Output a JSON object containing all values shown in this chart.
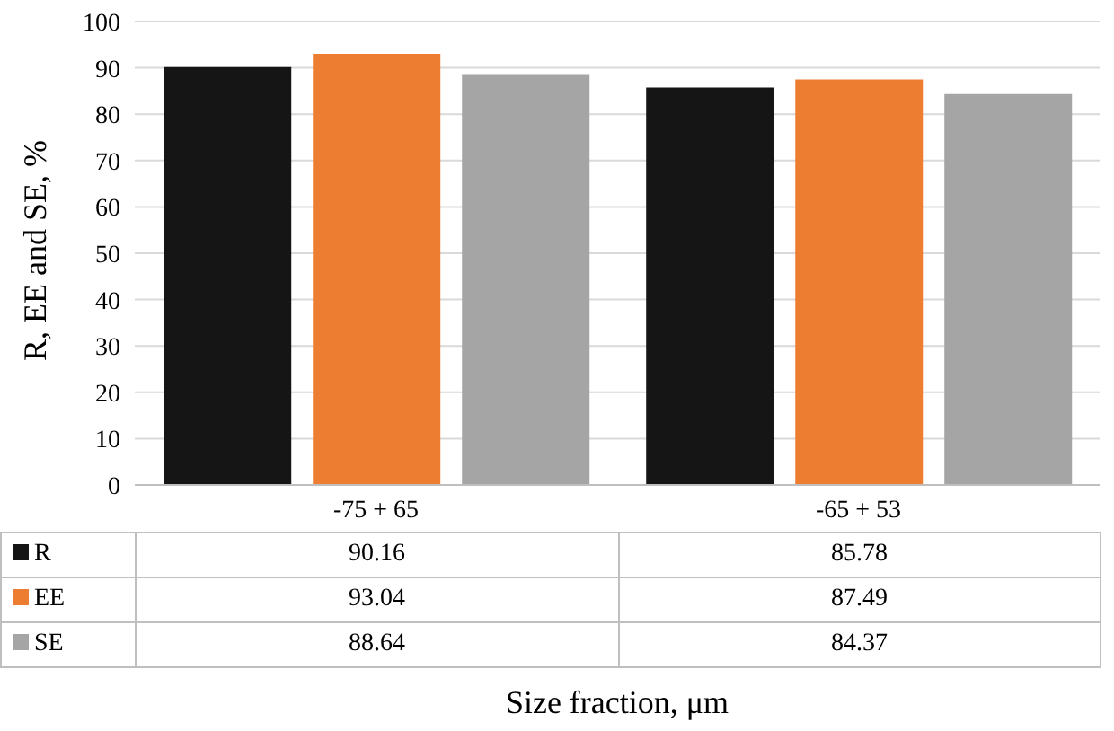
{
  "chart_data": {
    "type": "bar",
    "xlabel": "Size fraction, μm",
    "ylabel": "R, EE and SE, %",
    "categories": [
      "-75 + 65",
      "-65 + 53"
    ],
    "series": [
      {
        "name": "R",
        "color": "#151515",
        "values": [
          90.16,
          85.78
        ]
      },
      {
        "name": "EE",
        "color": "#ed7d31",
        "values": [
          93.04,
          87.49
        ]
      },
      {
        "name": "SE",
        "color": "#a5a5a5",
        "values": [
          88.64,
          84.37
        ]
      }
    ],
    "ylim": [
      0,
      100
    ],
    "yticks": [
      0,
      10,
      20,
      30,
      40,
      50,
      60,
      70,
      80,
      90,
      100
    ],
    "grid": "y",
    "data_labels": true,
    "legend": "bottom"
  }
}
